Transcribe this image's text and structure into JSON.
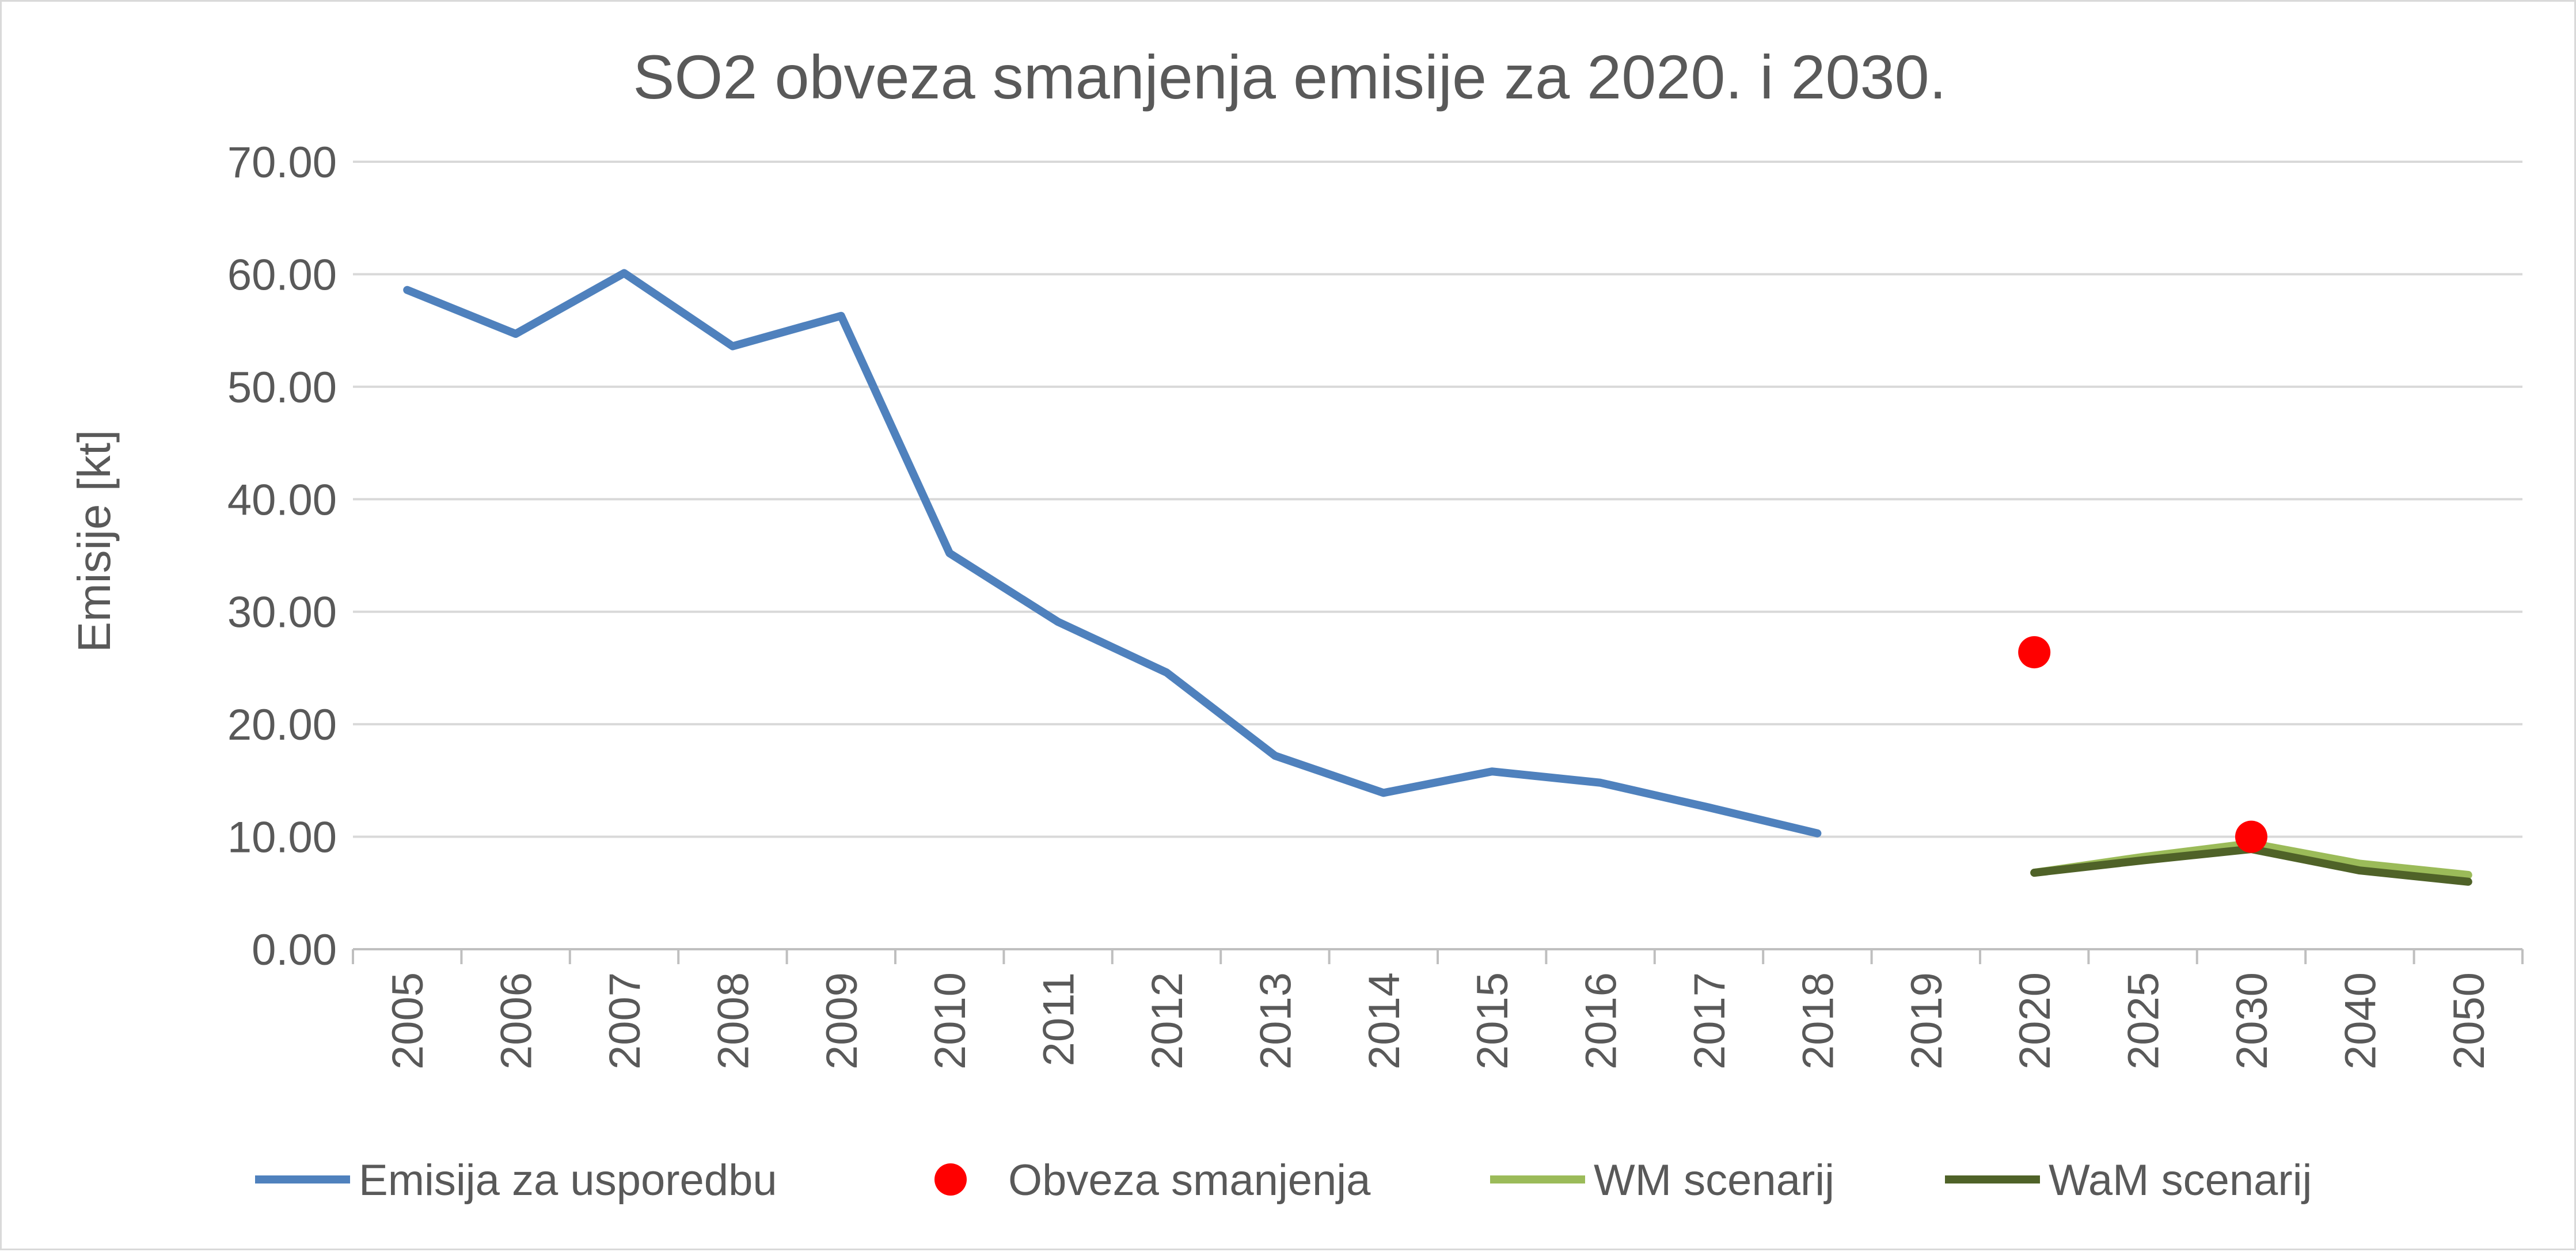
{
  "chart_data": {
    "type": "line",
    "title": "SO2 obveza smanjenja emisije za 2020. i 2030.",
    "xlabel": "",
    "ylabel": "Emisije [kt]",
    "ylim": [
      0,
      70
    ],
    "yticks": [
      "0.00",
      "10.00",
      "20.00",
      "30.00",
      "40.00",
      "50.00",
      "60.00",
      "70.00"
    ],
    "grid": true,
    "legend_position": "bottom",
    "categories": [
      "2005",
      "2006",
      "2007",
      "2008",
      "2009",
      "2010",
      "2011",
      "2012",
      "2013",
      "2014",
      "2015",
      "2016",
      "2017",
      "2018",
      "2019",
      "2020",
      "2025",
      "2030",
      "2040",
      "2050"
    ],
    "series": [
      {
        "name": "Emisija za usporedbu",
        "kind": "line",
        "color": "#4f81bd",
        "values": [
          58.6,
          54.7,
          60.1,
          53.6,
          56.3,
          35.2,
          29.1,
          24.6,
          17.2,
          13.9,
          15.8,
          14.8,
          12.6,
          10.3,
          null,
          null,
          null,
          null,
          null,
          null
        ]
      },
      {
        "name": "Obveza smanjenja",
        "kind": "marker",
        "color": "#ff0000",
        "values": [
          null,
          null,
          null,
          null,
          null,
          null,
          null,
          null,
          null,
          null,
          null,
          null,
          null,
          null,
          null,
          26.4,
          null,
          10.0,
          null,
          null
        ]
      },
      {
        "name": "WM scenarij",
        "kind": "line",
        "color": "#9bbb59",
        "values": [
          null,
          null,
          null,
          null,
          null,
          null,
          null,
          null,
          null,
          null,
          null,
          null,
          null,
          null,
          null,
          6.8,
          8.2,
          9.4,
          7.6,
          6.6
        ]
      },
      {
        "name": "WaM scenarij",
        "kind": "line",
        "color": "#4f6228",
        "values": [
          null,
          null,
          null,
          null,
          null,
          null,
          null,
          null,
          null,
          null,
          null,
          null,
          null,
          null,
          null,
          6.8,
          7.9,
          8.9,
          7.0,
          6.0
        ]
      }
    ]
  }
}
